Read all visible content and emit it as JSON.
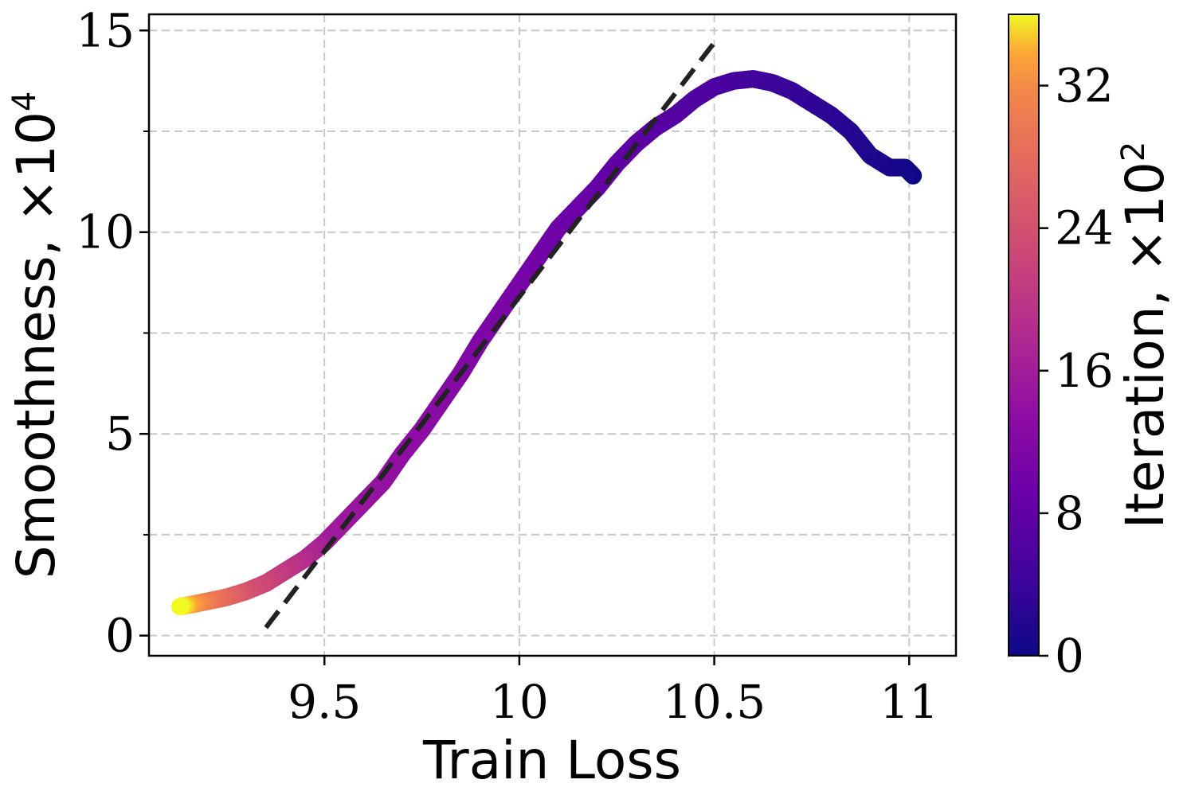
{
  "chart_data": {
    "type": "scatter",
    "xlabel": "Train Loss",
    "ylabel": "Smoothness, ×10",
    "ylabel_exponent": "4",
    "colorbar_label": "Iteration, ×10",
    "colorbar_exponent": "2",
    "colormap": "plasma",
    "xlim": [
      9.05,
      11.12
    ],
    "ylim": [
      -0.5,
      15.4
    ],
    "clim": [
      0,
      36
    ],
    "x_ticks": [
      9.5,
      10,
      10.5,
      11
    ],
    "x_tick_labels": [
      "9.5",
      "10",
      "10.5",
      "11"
    ],
    "y_ticks": [
      0,
      5,
      10,
      15
    ],
    "y_tick_labels": [
      "0",
      "5",
      "10",
      "15"
    ],
    "y_minor_ticks": [
      2.5,
      7.5,
      12.5
    ],
    "colorbar_ticks": [
      0,
      8,
      16,
      24,
      32
    ],
    "colorbar_tick_labels": [
      "0",
      "8",
      "16",
      "24",
      "32"
    ],
    "grid": true,
    "trajectory": [
      {
        "iteration": 0.0,
        "x": 11.01,
        "y": 11.4
      },
      {
        "iteration": 0.5,
        "x": 10.99,
        "y": 11.6
      },
      {
        "iteration": 1.0,
        "x": 10.95,
        "y": 11.6
      },
      {
        "iteration": 1.5,
        "x": 10.9,
        "y": 11.9
      },
      {
        "iteration": 2.0,
        "x": 10.85,
        "y": 12.5
      },
      {
        "iteration": 2.5,
        "x": 10.8,
        "y": 12.9
      },
      {
        "iteration": 3.0,
        "x": 10.75,
        "y": 13.2
      },
      {
        "iteration": 3.5,
        "x": 10.7,
        "y": 13.5
      },
      {
        "iteration": 4.0,
        "x": 10.65,
        "y": 13.7
      },
      {
        "iteration": 4.5,
        "x": 10.6,
        "y": 13.8
      },
      {
        "iteration": 5.0,
        "x": 10.55,
        "y": 13.75
      },
      {
        "iteration": 5.5,
        "x": 10.5,
        "y": 13.6
      },
      {
        "iteration": 6.0,
        "x": 10.45,
        "y": 13.3
      },
      {
        "iteration": 6.5,
        "x": 10.4,
        "y": 12.9
      },
      {
        "iteration": 7.0,
        "x": 10.35,
        "y": 12.6
      },
      {
        "iteration": 7.5,
        "x": 10.3,
        "y": 12.2
      },
      {
        "iteration": 8.0,
        "x": 10.25,
        "y": 11.7
      },
      {
        "iteration": 8.5,
        "x": 10.2,
        "y": 11.1
      },
      {
        "iteration": 9.0,
        "x": 10.15,
        "y": 10.6
      },
      {
        "iteration": 9.5,
        "x": 10.1,
        "y": 10.1
      },
      {
        "iteration": 10.0,
        "x": 10.05,
        "y": 9.4
      },
      {
        "iteration": 10.5,
        "x": 10.0,
        "y": 8.7
      },
      {
        "iteration": 11.0,
        "x": 9.95,
        "y": 8.0
      },
      {
        "iteration": 11.5,
        "x": 9.9,
        "y": 7.3
      },
      {
        "iteration": 12.0,
        "x": 9.85,
        "y": 6.5
      },
      {
        "iteration": 12.5,
        "x": 9.8,
        "y": 5.8
      },
      {
        "iteration": 13.0,
        "x": 9.75,
        "y": 5.1
      },
      {
        "iteration": 13.5,
        "x": 9.7,
        "y": 4.5
      },
      {
        "iteration": 14.0,
        "x": 9.65,
        "y": 3.8
      },
      {
        "iteration": 14.5,
        "x": 9.6,
        "y": 3.3
      },
      {
        "iteration": 15.0,
        "x": 9.55,
        "y": 2.8
      },
      {
        "iteration": 16.0,
        "x": 9.5,
        "y": 2.3
      },
      {
        "iteration": 18.0,
        "x": 9.45,
        "y": 1.9
      },
      {
        "iteration": 20.0,
        "x": 9.4,
        "y": 1.6
      },
      {
        "iteration": 22.0,
        "x": 9.35,
        "y": 1.3
      },
      {
        "iteration": 24.0,
        "x": 9.3,
        "y": 1.1
      },
      {
        "iteration": 27.0,
        "x": 9.25,
        "y": 0.95
      },
      {
        "iteration": 30.0,
        "x": 9.2,
        "y": 0.85
      },
      {
        "iteration": 33.0,
        "x": 9.16,
        "y": 0.77
      },
      {
        "iteration": 36.0,
        "x": 9.13,
        "y": 0.72
      }
    ],
    "fit_line": {
      "x": [
        9.35,
        10.5
      ],
      "y": [
        0.2,
        14.7
      ]
    }
  }
}
